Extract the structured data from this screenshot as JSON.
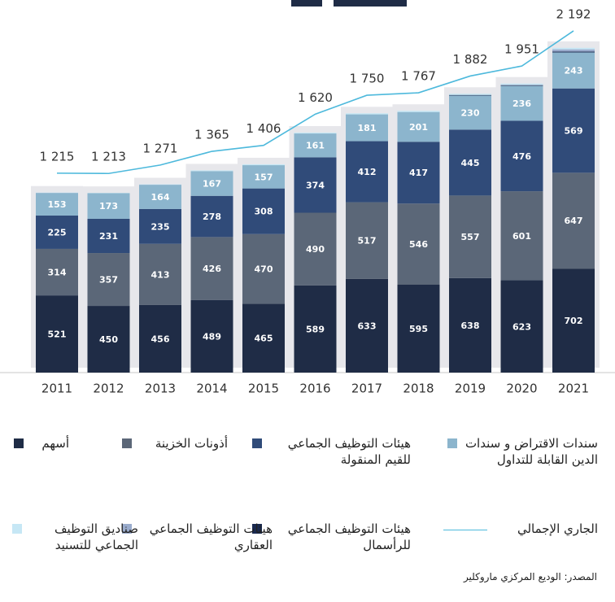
{
  "chart_data": {
    "type": "bar",
    "stacked": true,
    "categories": [
      "2011",
      "2012",
      "2013",
      "2014",
      "2015",
      "2016",
      "2017",
      "2018",
      "2019",
      "2020",
      "2021"
    ],
    "ylim": [
      0,
      2515
    ],
    "y2lim": [
      -154,
      2404
    ],
    "series": [
      {
        "name": "أسهم",
        "color": "#1f2c46",
        "values": [
          521,
          450,
          456,
          489,
          465,
          589,
          633,
          595,
          638,
          623,
          702
        ]
      },
      {
        "name": "أذونات الخزينة",
        "color": "#5b6778",
        "values": [
          314,
          357,
          413,
          426,
          470,
          490,
          517,
          546,
          557,
          601,
          647
        ]
      },
      {
        "name": "هيئات التوظيف الجماعي للقيم المنقولة",
        "color": "#304b79",
        "values": [
          225,
          231,
          235,
          278,
          308,
          374,
          412,
          417,
          445,
          476,
          569
        ]
      },
      {
        "name": "سندات الاقتراض و سندات الدين القابلة للتداول",
        "color": "#8cb5cd",
        "values": [
          153,
          173,
          164,
          167,
          157,
          161,
          181,
          201,
          230,
          236,
          243
        ]
      },
      {
        "name": "هيئات التوظيف الجماعي للرأسمال",
        "color": "#1a2a50",
        "values": [
          0,
          0,
          0,
          0,
          0,
          0,
          0,
          0,
          4,
          4,
          6
        ]
      },
      {
        "name": "هيئات التوظيف الجماعي العقاري",
        "color": "#9aaccd",
        "values": [
          0,
          0,
          0,
          0,
          0,
          0,
          0,
          0,
          0,
          3,
          15
        ]
      },
      {
        "name": "صناديق التوظيف الجماعي للتسنيد",
        "color": "#c6e7f5",
        "values": [
          2,
          2,
          3,
          5,
          6,
          6,
          7,
          8,
          8,
          8,
          10
        ]
      },
      {
        "name": "الجاري الإجمالي",
        "type": "line",
        "axis": "y2",
        "color": "#4db9dc",
        "values": [
          1215,
          1213,
          1271,
          1365,
          1406,
          1620,
          1750,
          1767,
          1882,
          1951,
          2192
        ],
        "value_labels": [
          "1 215",
          "1 213",
          "1 271",
          "1 365",
          "1 406",
          "1 620",
          "1 750",
          "1 767",
          "1 882",
          "1 951",
          "2 192"
        ]
      }
    ],
    "source": "المصدر: الوديع المركزي ماروكلير"
  }
}
